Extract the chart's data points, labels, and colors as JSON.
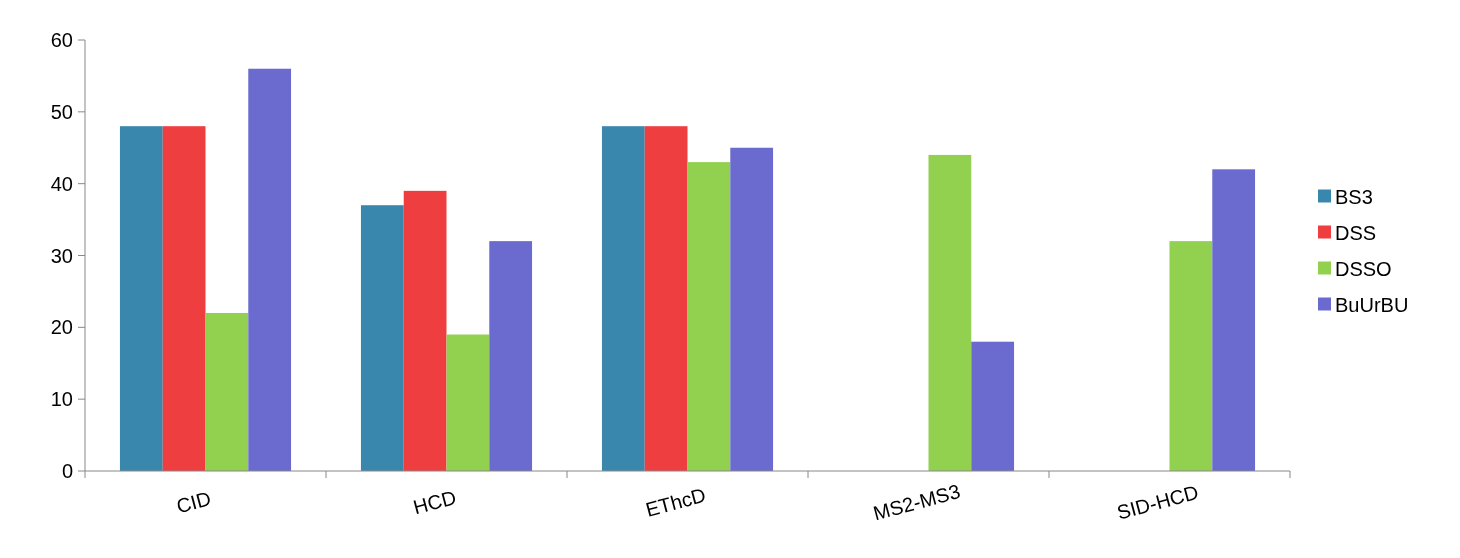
{
  "chart_data": {
    "type": "bar",
    "categories": [
      "CID",
      "HCD",
      "EThcD",
      "MS2-MS3",
      "SID-HCD"
    ],
    "series": [
      {
        "name": "BS3",
        "color": "#3a87ad",
        "values": [
          48,
          37,
          48,
          null,
          null
        ]
      },
      {
        "name": "DSS",
        "color": "#ee3e3f",
        "values": [
          48,
          39,
          48,
          null,
          null
        ]
      },
      {
        "name": "DSSO",
        "color": "#92d050",
        "values": [
          22,
          19,
          43,
          44,
          32
        ]
      },
      {
        "name": "BuUrBU",
        "color": "#6b6bcf",
        "values": [
          56,
          32,
          45,
          18,
          42
        ]
      }
    ],
    "ylim": [
      0,
      60
    ],
    "yticks": [
      0,
      10,
      20,
      30,
      40,
      50,
      60
    ],
    "grid": false,
    "legend": "right"
  }
}
